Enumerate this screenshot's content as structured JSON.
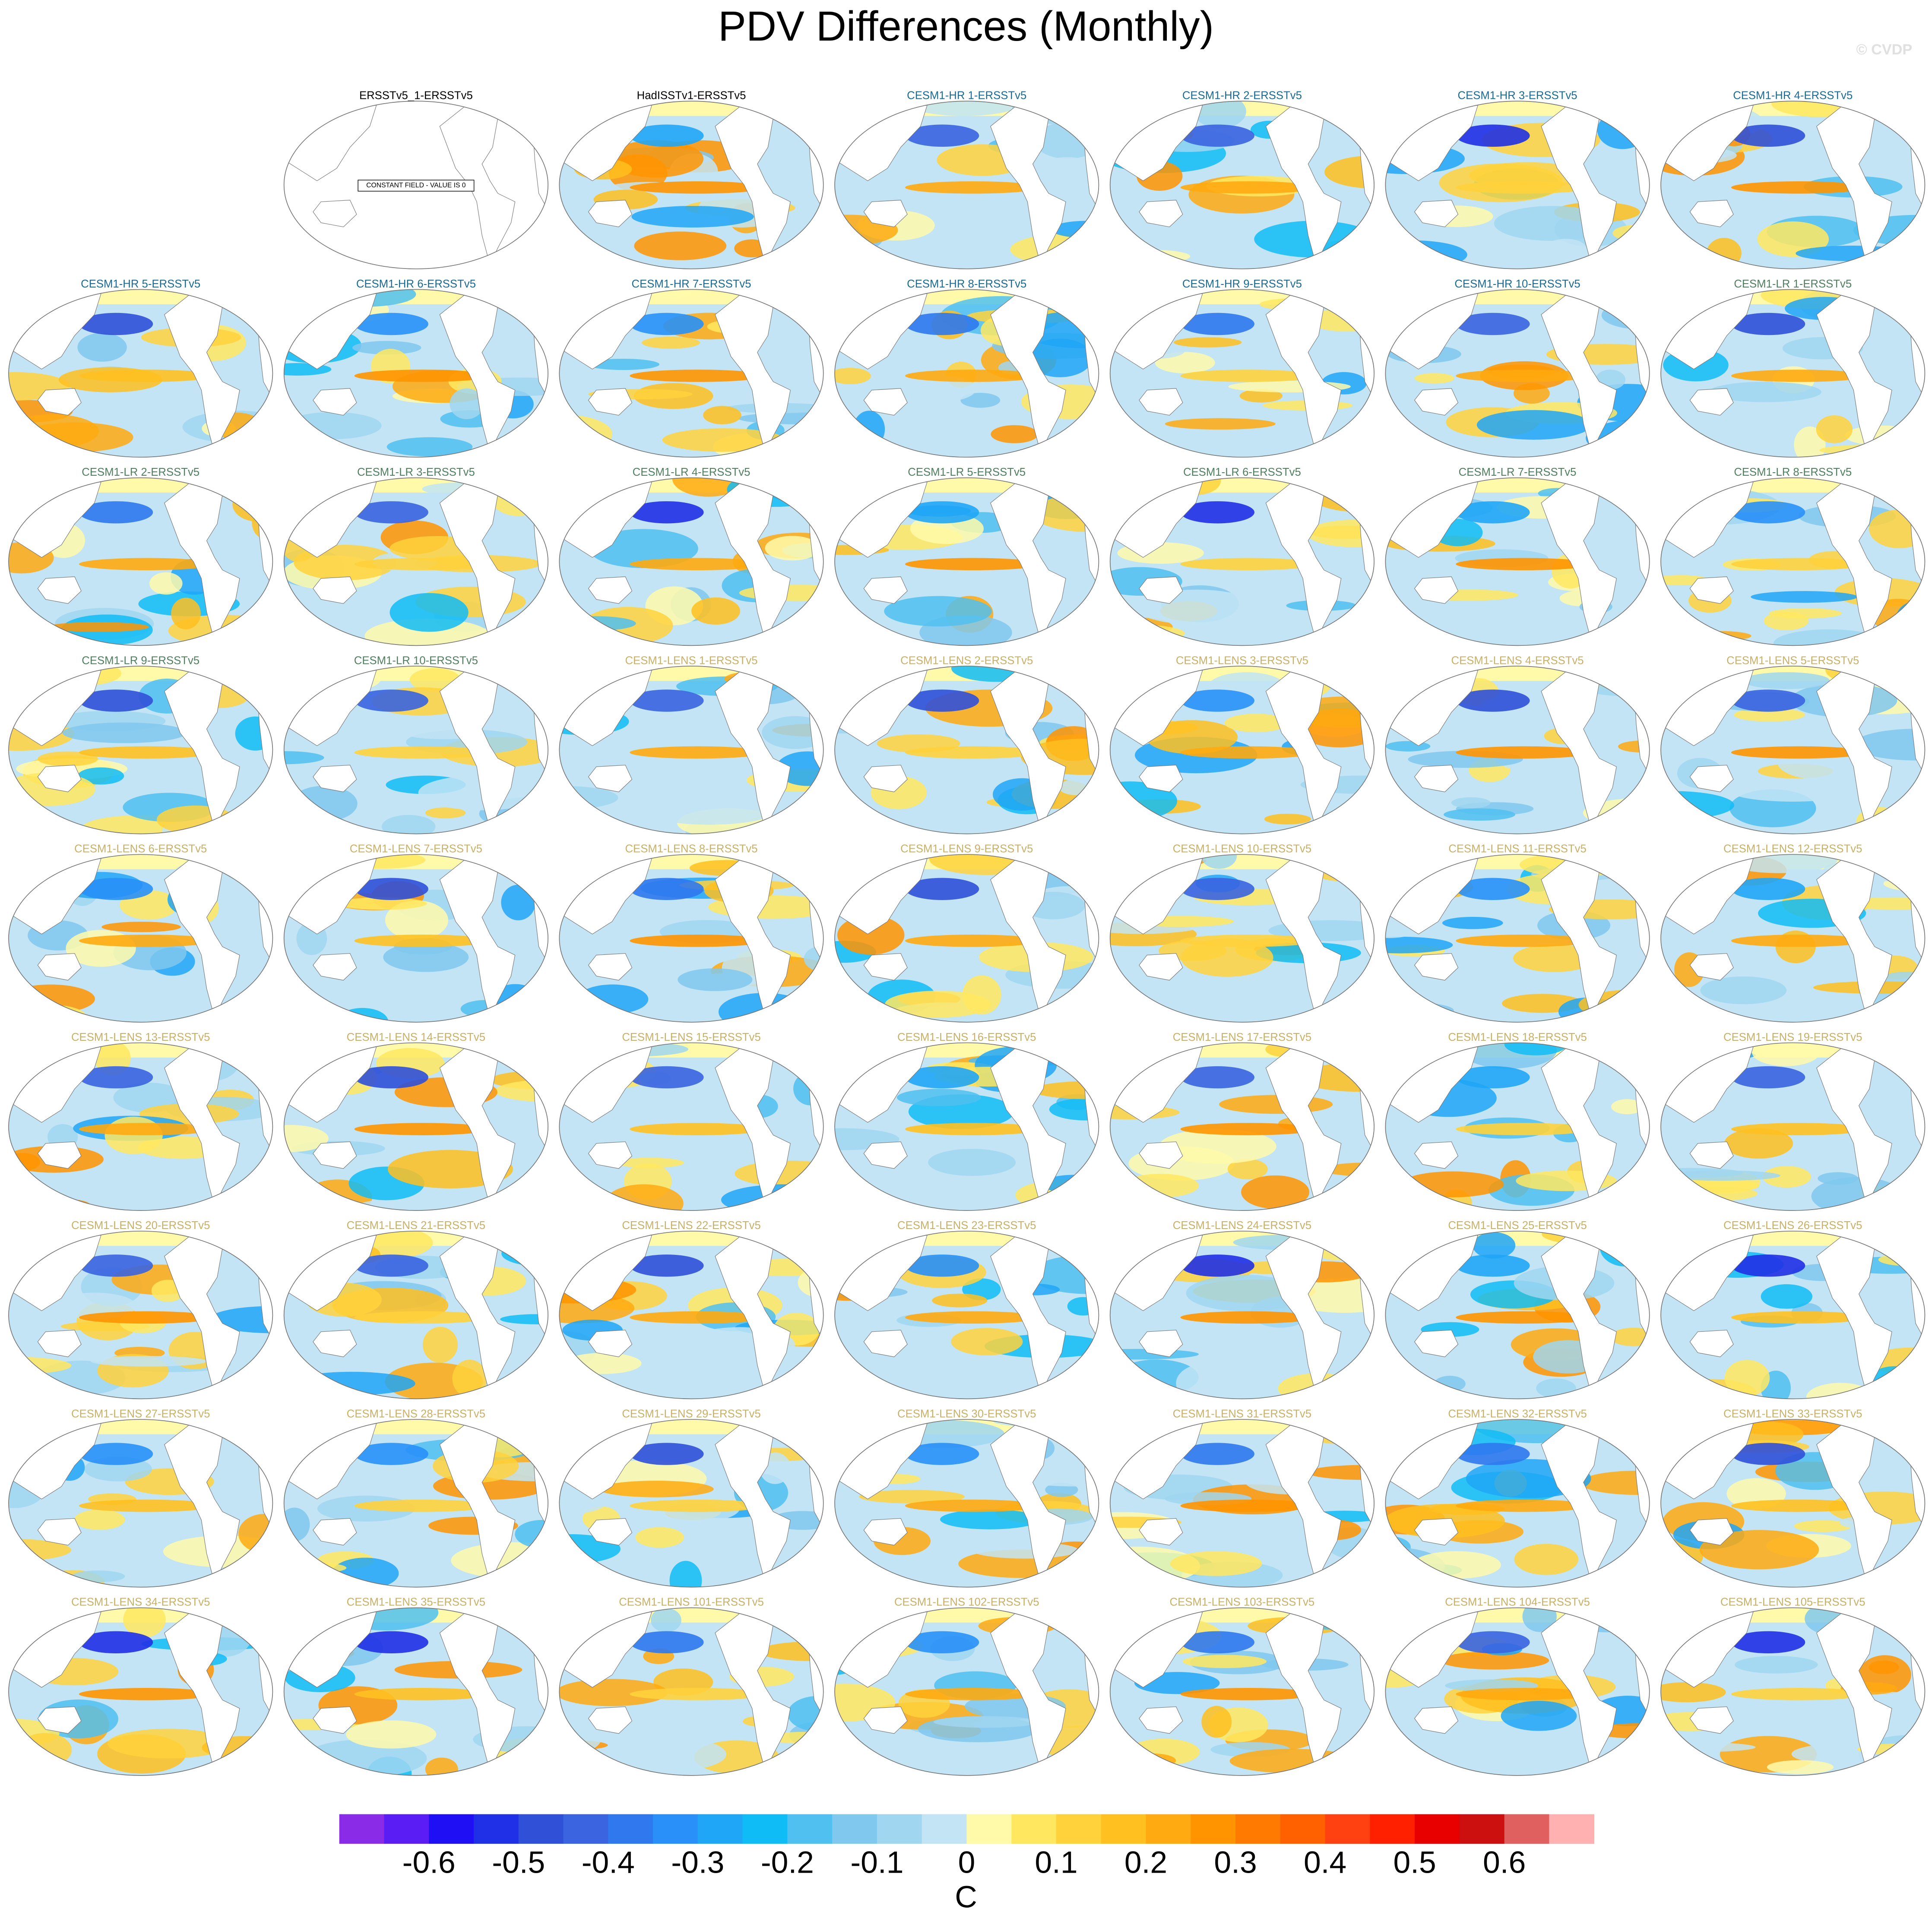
{
  "chart_data": {
    "type": "map-panels",
    "title": "PDV Differences (Monthly)",
    "watermark": "© CVDP",
    "panels": [
      {
        "title": "ERSSTv5_1-ERSSTv5",
        "color": "#000000",
        "annotation": "CONSTANT FIELD - VALUE IS 0"
      },
      {
        "title": "HadISSTv1-ERSSTv5",
        "color": "#000000"
      },
      {
        "title": "CESM1-HR 1-ERSSTv5",
        "color": "#1a6a94"
      },
      {
        "title": "CESM1-HR 2-ERSSTv5",
        "color": "#1a6a94"
      },
      {
        "title": "CESM1-HR 3-ERSSTv5",
        "color": "#1a6a94"
      },
      {
        "title": "CESM1-HR 4-ERSSTv5",
        "color": "#1a6a94"
      },
      {
        "title": "CESM1-HR 5-ERSSTv5",
        "color": "#1a6a94"
      },
      {
        "title": "CESM1-HR 6-ERSSTv5",
        "color": "#1a6a94"
      },
      {
        "title": "CESM1-HR 7-ERSSTv5",
        "color": "#1a6a94"
      },
      {
        "title": "CESM1-HR 8-ERSSTv5",
        "color": "#1a6a94"
      },
      {
        "title": "CESM1-HR 9-ERSSTv5",
        "color": "#1a6a94"
      },
      {
        "title": "CESM1-HR 10-ERSSTv5",
        "color": "#1a6a94"
      },
      {
        "title": "CESM1-LR 1-ERSSTv5",
        "color": "#4f7f5f"
      },
      {
        "title": "CESM1-LR 2-ERSSTv5",
        "color": "#4f7f5f"
      },
      {
        "title": "CESM1-LR 3-ERSSTv5",
        "color": "#4f7f5f"
      },
      {
        "title": "CESM1-LR 4-ERSSTv5",
        "color": "#4f7f5f"
      },
      {
        "title": "CESM1-LR 5-ERSSTv5",
        "color": "#4f7f5f"
      },
      {
        "title": "CESM1-LR 6-ERSSTv5",
        "color": "#4f7f5f"
      },
      {
        "title": "CESM1-LR 7-ERSSTv5",
        "color": "#4f7f5f"
      },
      {
        "title": "CESM1-LR 8-ERSSTv5",
        "color": "#4f7f5f"
      },
      {
        "title": "CESM1-LR 9-ERSSTv5",
        "color": "#4f7f5f"
      },
      {
        "title": "CESM1-LR 10-ERSSTv5",
        "color": "#4f7f5f"
      },
      {
        "title": "CESM1-LENS 1-ERSSTv5",
        "color": "#c8b066"
      },
      {
        "title": "CESM1-LENS 2-ERSSTv5",
        "color": "#c8b066"
      },
      {
        "title": "CESM1-LENS 3-ERSSTv5",
        "color": "#c8b066"
      },
      {
        "title": "CESM1-LENS 4-ERSSTv5",
        "color": "#c8b066"
      },
      {
        "title": "CESM1-LENS 5-ERSSTv5",
        "color": "#c8b066"
      },
      {
        "title": "CESM1-LENS 6-ERSSTv5",
        "color": "#c8b066"
      },
      {
        "title": "CESM1-LENS 7-ERSSTv5",
        "color": "#c8b066"
      },
      {
        "title": "CESM1-LENS 8-ERSSTv5",
        "color": "#c8b066"
      },
      {
        "title": "CESM1-LENS 9-ERSSTv5",
        "color": "#c8b066"
      },
      {
        "title": "CESM1-LENS 10-ERSSTv5",
        "color": "#c8b066"
      },
      {
        "title": "CESM1-LENS 11-ERSSTv5",
        "color": "#c8b066"
      },
      {
        "title": "CESM1-LENS 12-ERSSTv5",
        "color": "#c8b066"
      },
      {
        "title": "CESM1-LENS 13-ERSSTv5",
        "color": "#c8b066"
      },
      {
        "title": "CESM1-LENS 14-ERSSTv5",
        "color": "#c8b066"
      },
      {
        "title": "CESM1-LENS 15-ERSSTv5",
        "color": "#c8b066"
      },
      {
        "title": "CESM1-LENS 16-ERSSTv5",
        "color": "#c8b066"
      },
      {
        "title": "CESM1-LENS 17-ERSSTv5",
        "color": "#c8b066"
      },
      {
        "title": "CESM1-LENS 18-ERSSTv5",
        "color": "#c8b066"
      },
      {
        "title": "CESM1-LENS 19-ERSSTv5",
        "color": "#c8b066"
      },
      {
        "title": "CESM1-LENS 20-ERSSTv5",
        "color": "#c8b066"
      },
      {
        "title": "CESM1-LENS 21-ERSSTv5",
        "color": "#c8b066"
      },
      {
        "title": "CESM1-LENS 22-ERSSTv5",
        "color": "#c8b066"
      },
      {
        "title": "CESM1-LENS 23-ERSSTv5",
        "color": "#c8b066"
      },
      {
        "title": "CESM1-LENS 24-ERSSTv5",
        "color": "#c8b066"
      },
      {
        "title": "CESM1-LENS 25-ERSSTv5",
        "color": "#c8b066"
      },
      {
        "title": "CESM1-LENS 26-ERSSTv5",
        "color": "#c8b066"
      },
      {
        "title": "CESM1-LENS 27-ERSSTv5",
        "color": "#c8b066"
      },
      {
        "title": "CESM1-LENS 28-ERSSTv5",
        "color": "#c8b066"
      },
      {
        "title": "CESM1-LENS 29-ERSSTv5",
        "color": "#c8b066"
      },
      {
        "title": "CESM1-LENS 30-ERSSTv5",
        "color": "#c8b066"
      },
      {
        "title": "CESM1-LENS 31-ERSSTv5",
        "color": "#c8b066"
      },
      {
        "title": "CESM1-LENS 32-ERSSTv5",
        "color": "#c8b066"
      },
      {
        "title": "CESM1-LENS 33-ERSSTv5",
        "color": "#c8b066"
      },
      {
        "title": "CESM1-LENS 34-ERSSTv5",
        "color": "#c8b066"
      },
      {
        "title": "CESM1-LENS 35-ERSSTv5",
        "color": "#c8b066"
      },
      {
        "title": "CESM1-LENS 101-ERSSTv5",
        "color": "#c8b066"
      },
      {
        "title": "CESM1-LENS 102-ERSSTv5",
        "color": "#c8b066"
      },
      {
        "title": "CESM1-LENS 103-ERSSTv5",
        "color": "#c8b066"
      },
      {
        "title": "CESM1-LENS 104-ERSSTv5",
        "color": "#c8b066"
      },
      {
        "title": "CESM1-LENS 105-ERSSTv5",
        "color": "#c8b066"
      }
    ],
    "colorbar": {
      "colors": [
        "#8a2be8",
        "#5a1ef5",
        "#1e0ff5",
        "#2030e6",
        "#3050d8",
        "#3a64e0",
        "#2f78ee",
        "#2890f8",
        "#20a6f6",
        "#10bcf6",
        "#50c0f0",
        "#80c8ee",
        "#a0d6f0",
        "#c2e4f4",
        "#fffaaa",
        "#ffe860",
        "#ffd23c",
        "#ffc020",
        "#ffaa10",
        "#ff9400",
        "#ff7a00",
        "#ff6000",
        "#ff4010",
        "#ff2000",
        "#e80000",
        "#cc1010",
        "#e06060",
        "#ffb0b0"
      ],
      "xlim": [
        -0.7,
        0.7
      ],
      "xticks": [
        -0.6,
        -0.5,
        -0.4,
        -0.3,
        -0.2,
        -0.1,
        0,
        0.1,
        0.2,
        0.3,
        0.4,
        0.5,
        0.6
      ],
      "label": "C"
    }
  }
}
